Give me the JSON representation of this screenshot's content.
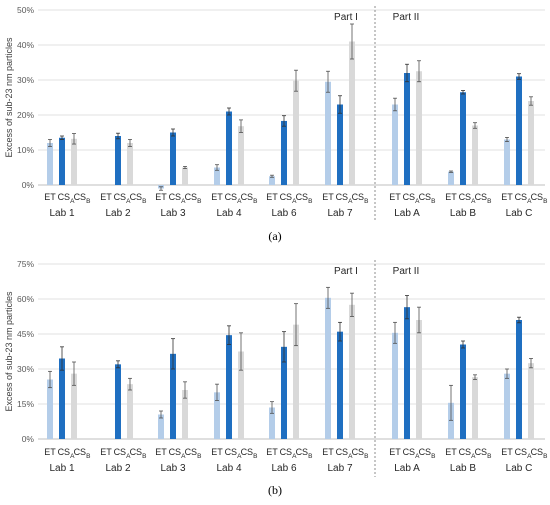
{
  "chart_data": [
    {
      "type": "bar",
      "panel_label": "(a)",
      "ylabel": "Excess of sub-23 nm particles",
      "ylim": [
        0,
        50
      ],
      "ytick_labels": [
        "0%",
        "10%",
        "20%",
        "30%",
        "40%",
        "50%"
      ],
      "yticks": [
        0,
        10,
        20,
        30,
        40,
        50
      ],
      "part_labels": [
        "Part I",
        "Part II"
      ],
      "series_labels": [
        "ET",
        "CS",
        "CS"
      ],
      "series_subscripts": [
        "",
        "A",
        "B"
      ],
      "colors": {
        "ET": "#b4cde9",
        "CS_A": "#1f6fc1",
        "CS_B": "#d9d9d9"
      },
      "categories": [
        "Lab 1",
        "Lab 2",
        "Lab 3",
        "Lab 4",
        "Lab 6",
        "Lab 7",
        "Lab A",
        "Lab B",
        "Lab C"
      ],
      "series": [
        {
          "values": [
            12,
            null,
            -1,
            5,
            2.5,
            29.5,
            23,
            3.8,
            13
          ],
          "errors": [
            1,
            null,
            0.5,
            0.8,
            0.3,
            3,
            1.8,
            0.2,
            0.6
          ]
        },
        {
          "values": [
            13.5,
            14,
            15,
            21,
            18.3,
            23,
            32,
            26.5,
            31
          ],
          "errors": [
            0.5,
            0.8,
            1,
            1,
            1.5,
            2.5,
            2.5,
            0.5,
            0.8
          ]
        },
        {
          "values": [
            13.2,
            12,
            5,
            16.8,
            29.8,
            41,
            32.5,
            17,
            24
          ],
          "errors": [
            1.5,
            1,
            0.3,
            1.8,
            3,
            5,
            3,
            0.8,
            1.2
          ]
        }
      ]
    },
    {
      "type": "bar",
      "panel_label": "(b)",
      "ylabel": "Excess of sub-23 nm particles",
      "ylim": [
        0,
        75
      ],
      "ytick_labels": [
        "0%",
        "15%",
        "30%",
        "45%",
        "60%",
        "75%"
      ],
      "yticks": [
        0,
        15,
        30,
        45,
        60,
        75
      ],
      "part_labels": [
        "Part I",
        "Part II"
      ],
      "series_labels": [
        "ET",
        "CS",
        "CS"
      ],
      "series_subscripts": [
        "",
        "A",
        "B"
      ],
      "colors": {
        "ET": "#b4cde9",
        "CS_A": "#1f6fc1",
        "CS_B": "#d9d9d9"
      },
      "categories": [
        "Lab 1",
        "Lab 2",
        "Lab 3",
        "Lab 4",
        "Lab 6",
        "Lab 7",
        "Lab A",
        "Lab B",
        "Lab C"
      ],
      "series": [
        {
          "values": [
            25.5,
            null,
            10.5,
            20,
            13.5,
            60.5,
            45.5,
            15.5,
            28
          ],
          "errors": [
            3.5,
            null,
            1.5,
            3.5,
            2.5,
            4.5,
            4.5,
            7.5,
            2
          ]
        },
        {
          "values": [
            34.5,
            32,
            36.5,
            44.5,
            39.5,
            46,
            56.5,
            40.5,
            51
          ],
          "errors": [
            5,
            1.5,
            6.5,
            4,
            6.5,
            4,
            5,
            1.5,
            1.2
          ]
        },
        {
          "values": [
            28,
            23.5,
            21,
            37.5,
            49,
            57.5,
            51,
            26.5,
            32.5
          ],
          "errors": [
            5,
            2.5,
            3.5,
            8,
            9,
            5,
            5.5,
            1,
            2
          ]
        }
      ]
    }
  ]
}
